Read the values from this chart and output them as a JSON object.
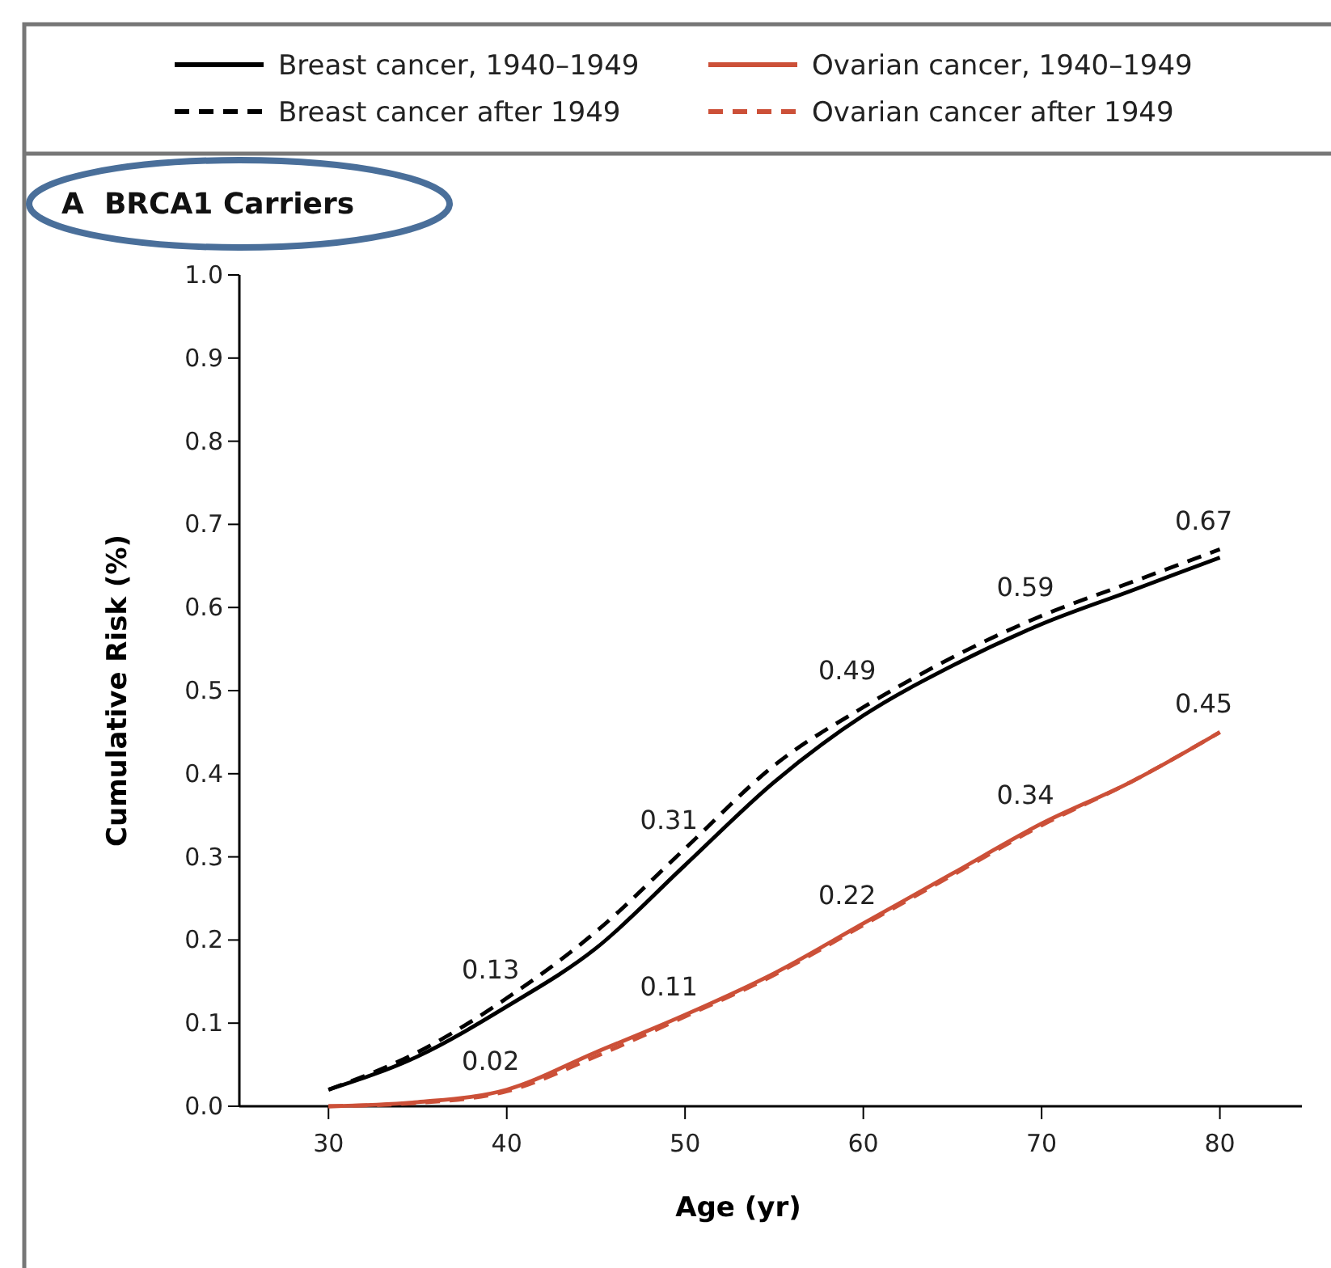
{
  "chart_data": {
    "type": "line",
    "title": "A  BRCA1 Carriers",
    "xlabel": "Age (yr)",
    "ylabel": "Cumulative Risk (%)",
    "x": [
      30,
      35,
      40,
      45,
      50,
      55,
      60,
      65,
      70,
      75,
      80
    ],
    "series": [
      {
        "name": "Breast cancer, 1940–1949",
        "color": "#000000",
        "line_style": "solid",
        "values": [
          0.02,
          0.06,
          0.12,
          0.19,
          0.29,
          0.39,
          0.47,
          0.53,
          0.58,
          0.62,
          0.66
        ]
      },
      {
        "name": "Breast cancer after 1949",
        "color": "#000000",
        "line_style": "dashed",
        "values": [
          0.02,
          0.065,
          0.13,
          0.21,
          0.31,
          0.41,
          0.48,
          0.54,
          0.59,
          0.63,
          0.67
        ]
      },
      {
        "name": "Ovarian cancer, 1940–1949",
        "color": "#cc5038",
        "line_style": "solid",
        "values": [
          0,
          0.005,
          0.02,
          0.065,
          0.11,
          0.16,
          0.22,
          0.28,
          0.34,
          0.39,
          0.45
        ]
      },
      {
        "name": "Ovarian cancer after 1949",
        "color": "#cc5038",
        "line_style": "dashed",
        "values": [
          0,
          0.004,
          0.018,
          0.06,
          0.108,
          0.158,
          0.218,
          0.278,
          0.338,
          0.39,
          0.45
        ]
      }
    ],
    "xlim": [
      25,
      84.6
    ],
    "xticks": [
      30,
      40,
      50,
      60,
      70,
      80
    ],
    "ylim": [
      0,
      1
    ],
    "yticks": [
      {
        "value": 0,
        "label": "0.0"
      },
      {
        "value": 0.1,
        "label": "0.1"
      },
      {
        "value": 0.2,
        "label": "0.2"
      },
      {
        "value": 0.3,
        "label": "0.3"
      },
      {
        "value": 0.4,
        "label": "0.4"
      },
      {
        "value": 0.5,
        "label": "0.5"
      },
      {
        "value": 0.6,
        "label": "0.6"
      },
      {
        "value": 0.7,
        "label": "0.7"
      },
      {
        "value": 0.8,
        "label": "0.8"
      },
      {
        "value": 0.9,
        "label": "0.9"
      },
      {
        "value": 1,
        "label": "1.0"
      }
    ],
    "annotations": [
      {
        "text": "0.13",
        "x": 40,
        "y": 0.13
      },
      {
        "text": "0.31",
        "x": 50,
        "y": 0.31
      },
      {
        "text": "0.49",
        "x": 60,
        "y": 0.49
      },
      {
        "text": "0.59",
        "x": 70,
        "y": 0.59
      },
      {
        "text": "0.67",
        "x": 80,
        "y": 0.67
      },
      {
        "text": "0.02",
        "x": 40,
        "y": 0.02
      },
      {
        "text": "0.11",
        "x": 50,
        "y": 0.11
      },
      {
        "text": "0.22",
        "x": 60,
        "y": 0.22
      },
      {
        "text": "0.34",
        "x": 70,
        "y": 0.34
      },
      {
        "text": "0.45",
        "x": 80,
        "y": 0.45
      }
    ],
    "legend": "top",
    "grid": false,
    "marker": "none"
  }
}
